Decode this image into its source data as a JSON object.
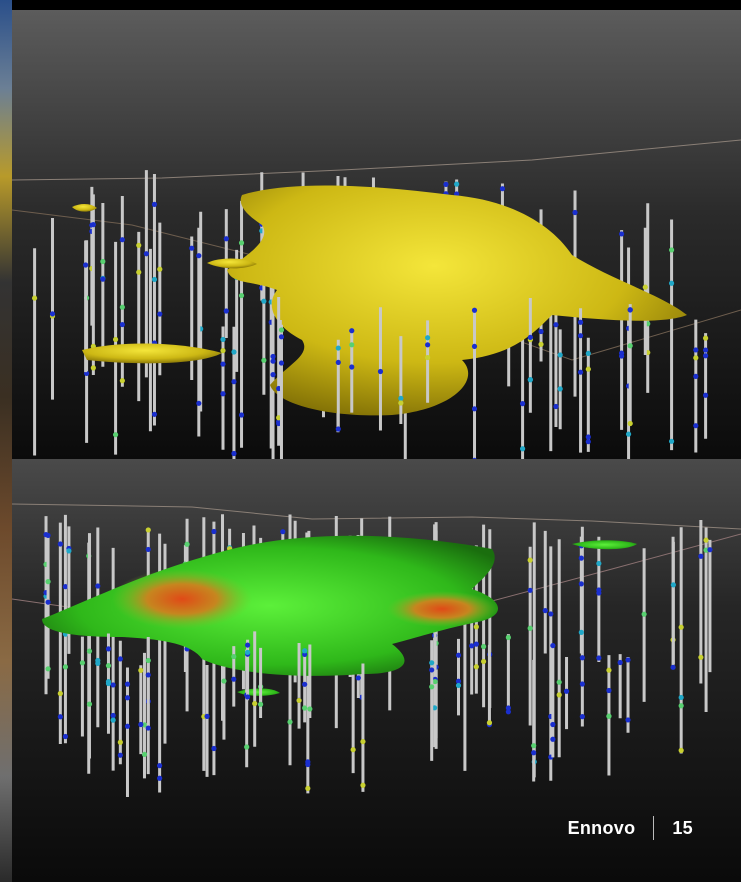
{
  "footer": {
    "brand": "Ennovo",
    "page_number": "15"
  },
  "colors": {
    "top_body": "#d9c815",
    "bottom_body": "#3fcf22",
    "bottom_hotspot": "#d24a18",
    "drillhole": "#c8c8c8",
    "sample_marker": "#1a2fcf"
  }
}
